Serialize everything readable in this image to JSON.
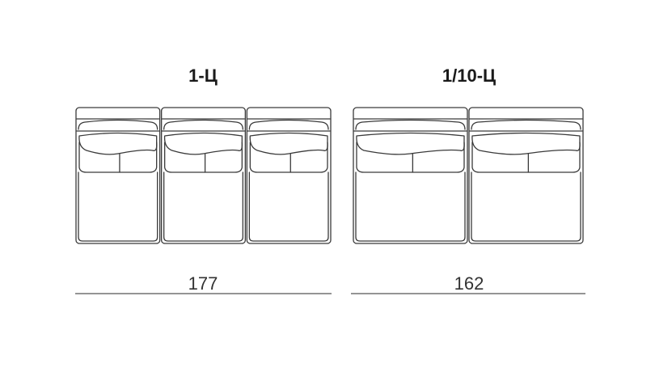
{
  "left_sofa": {
    "title": "1-Ц",
    "width_label": "177",
    "seat_count": 3
  },
  "right_sofa": {
    "title": "1/10-Ц",
    "width_label": "162",
    "seat_count": 2
  }
}
